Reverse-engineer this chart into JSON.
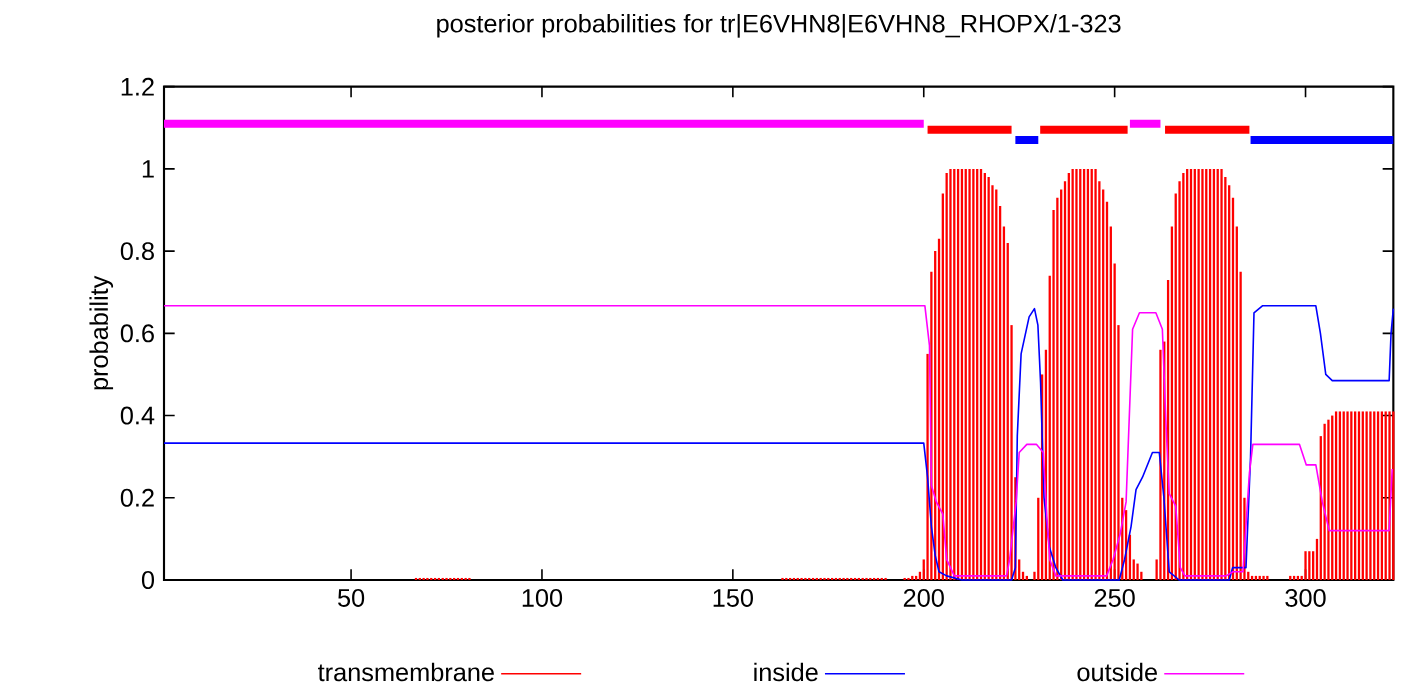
{
  "chart_data": {
    "type": "line",
    "title": "posterior probabilities for tr|E6VHN8|E6VHN8_RHOPX/1-323",
    "ylabel": "probability",
    "xlim": [
      1,
      323
    ],
    "ylim": [
      0,
      1.2
    ],
    "xticks": [
      50,
      100,
      150,
      200,
      250,
      300
    ],
    "yticks": [
      0,
      0.2,
      0.4,
      0.6,
      0.8,
      1,
      1.2
    ],
    "legend": "bottom",
    "series": [
      {
        "name": "transmembrane",
        "type": "bar",
        "color": "#ff0000",
        "x": [
          67,
          68,
          69,
          70,
          71,
          72,
          73,
          74,
          75,
          76,
          77,
          78,
          79,
          80,
          81,
          163,
          164,
          165,
          166,
          167,
          168,
          169,
          170,
          171,
          172,
          173,
          174,
          175,
          176,
          177,
          178,
          179,
          180,
          181,
          182,
          183,
          184,
          185,
          186,
          187,
          188,
          189,
          190,
          195,
          196,
          197,
          198,
          199,
          200,
          201,
          202,
          203,
          204,
          205,
          206,
          207,
          208,
          209,
          210,
          211,
          212,
          213,
          214,
          215,
          216,
          217,
          218,
          219,
          220,
          221,
          222,
          223,
          224,
          225,
          226,
          227,
          229,
          230,
          231,
          232,
          233,
          234,
          235,
          236,
          237,
          238,
          239,
          240,
          241,
          242,
          243,
          244,
          245,
          246,
          247,
          248,
          249,
          250,
          251,
          252,
          253,
          254,
          255,
          256,
          257,
          261,
          262,
          263,
          264,
          265,
          266,
          267,
          268,
          269,
          270,
          271,
          272,
          273,
          274,
          275,
          276,
          277,
          278,
          279,
          280,
          281,
          282,
          283,
          284,
          285,
          286,
          287,
          288,
          289,
          290,
          296,
          297,
          298,
          299,
          300,
          301,
          302,
          303,
          304,
          305,
          306,
          307,
          308,
          309,
          310,
          311,
          312,
          313,
          314,
          315,
          316,
          317,
          318,
          319,
          320,
          321,
          322,
          323
        ],
        "values": [
          0.005,
          0.005,
          0.005,
          0.005,
          0.005,
          0.005,
          0.005,
          0.005,
          0.005,
          0.005,
          0.005,
          0.005,
          0.005,
          0.005,
          0.005,
          0.005,
          0.005,
          0.005,
          0.005,
          0.005,
          0.005,
          0.005,
          0.005,
          0.005,
          0.005,
          0.005,
          0.005,
          0.005,
          0.005,
          0.005,
          0.005,
          0.005,
          0.005,
          0.005,
          0.005,
          0.005,
          0.005,
          0.005,
          0.005,
          0.005,
          0.005,
          0.005,
          0.005,
          0.005,
          0.005,
          0.01,
          0.01,
          0.02,
          0.05,
          0.55,
          0.75,
          0.8,
          0.83,
          0.94,
          0.99,
          1,
          1,
          1,
          1,
          1,
          1,
          1,
          1,
          1,
          0.99,
          0.98,
          0.96,
          0.95,
          0.91,
          0.86,
          0.82,
          0.62,
          0.25,
          0.05,
          0.02,
          0.01,
          0.02,
          0.2,
          0.5,
          0.56,
          0.74,
          0.9,
          0.93,
          0.95,
          0.97,
          0.99,
          1,
          1,
          1,
          1,
          1,
          1,
          1,
          0.97,
          0.95,
          0.92,
          0.86,
          0.77,
          0.62,
          0.2,
          0.17,
          0.11,
          0.05,
          0.04,
          0.02,
          0.05,
          0.56,
          0.58,
          0.73,
          0.86,
          0.94,
          0.97,
          0.99,
          1,
          1,
          1,
          1,
          1,
          1,
          1,
          1,
          1,
          1,
          0.98,
          0.96,
          0.93,
          0.86,
          0.75,
          0.2,
          0.02,
          0.01,
          0.01,
          0.01,
          0.01,
          0.01,
          0.01,
          0.01,
          0.01,
          0.01,
          0.07,
          0.07,
          0.07,
          0.1,
          0.35,
          0.38,
          0.39,
          0.4,
          0.41,
          0.41,
          0.41,
          0.41,
          0.41,
          0.41,
          0.41,
          0.41,
          0.41,
          0.41,
          0.41,
          0.41,
          0.41,
          0.41,
          0.41,
          0.41
        ]
      },
      {
        "name": "inside",
        "color": "#0000ff",
        "x": [
          1,
          200,
          201,
          202,
          203,
          204,
          206,
          210,
          223,
          224,
          224.5,
          225.5,
          227.6,
          229,
          229.9,
          230.6,
          231.5,
          232.9,
          234.6,
          236.4,
          251.2,
          252.6,
          254.3,
          255.6,
          257.3,
          259.9,
          261.7,
          262.9,
          264.3,
          266.9,
          280,
          280.9,
          284.4,
          285.6,
          286.5,
          288.7,
          302.7,
          303.9,
          305.3,
          307,
          321.9,
          322.4,
          323
        ],
        "values": [
          0.333,
          0.333,
          0.25,
          0.13,
          0.06,
          0.02,
          0.01,
          0,
          0,
          0.03,
          0.35,
          0.55,
          0.64,
          0.66,
          0.62,
          0.48,
          0.2,
          0.08,
          0.03,
          0,
          0,
          0.05,
          0.13,
          0.22,
          0.25,
          0.31,
          0.31,
          0.2,
          0.02,
          0,
          0,
          0.03,
          0.03,
          0.3,
          0.65,
          0.667,
          0.667,
          0.6,
          0.5,
          0.485,
          0.485,
          0.6,
          0.66
        ]
      },
      {
        "name": "outside",
        "color": "#ff00ff",
        "x": [
          1,
          200.3,
          201.5,
          202,
          203.3,
          205,
          206,
          208,
          221.7,
          222.5,
          224.2,
          225,
          227,
          229.5,
          231.3,
          232.2,
          233,
          234.6,
          247.9,
          249.6,
          251.4,
          253,
          254.7,
          256.5,
          260.8,
          262.5,
          263.4,
          264.3,
          266,
          267.2,
          268.4,
          279.2,
          281,
          283.6,
          285.3,
          286.2,
          298.4,
          300.2,
          302.7,
          304.4,
          306.2,
          321.9,
          322.7
        ],
        "values": [
          0.667,
          0.667,
          0.57,
          0.23,
          0.19,
          0.16,
          0.05,
          0.01,
          0.01,
          0.05,
          0.19,
          0.31,
          0.33,
          0.33,
          0.31,
          0.16,
          0.05,
          0.01,
          0.01,
          0.05,
          0.11,
          0.19,
          0.61,
          0.65,
          0.65,
          0.61,
          0.39,
          0.21,
          0.18,
          0.03,
          0.01,
          0.01,
          0.02,
          0.02,
          0.26,
          0.33,
          0.33,
          0.28,
          0.28,
          0.19,
          0.12,
          0.12,
          0.27
        ]
      },
      {
        "color": "#ff00ff",
        "x": [
          1,
          200,
          201,
          254,
          262
        ],
        "values": [
          1.11,
          1.11,
          null,
          1.11,
          1.11
        ]
      },
      {
        "color": "#ff0000",
        "x": [
          201,
          223,
          224,
          230.5,
          253.4,
          254,
          263.2,
          285.3
        ],
        "values": [
          1.095,
          1.095,
          null,
          1.095,
          1.095,
          null,
          1.095,
          1.095
        ]
      },
      {
        "color": "#0000ff",
        "x": [
          224,
          230,
          231,
          285.6,
          323
        ],
        "values": [
          1.07,
          1.07,
          null,
          1.07,
          1.07
        ]
      }
    ]
  }
}
